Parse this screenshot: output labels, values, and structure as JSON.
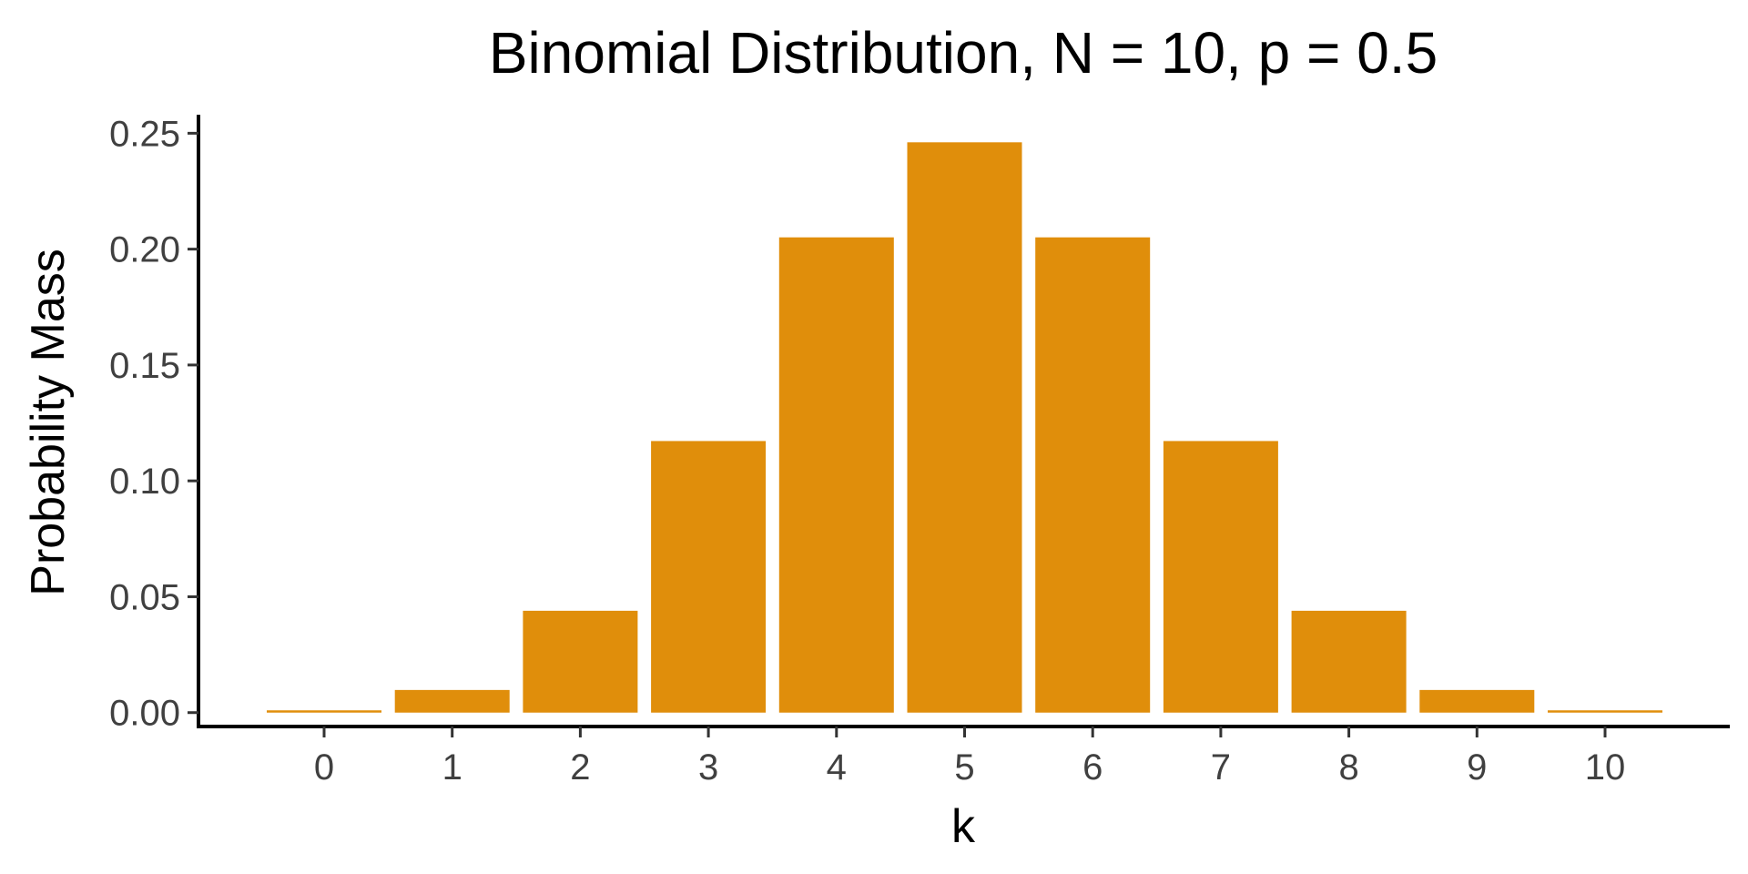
{
  "chart_data": {
    "type": "bar",
    "title": "Binomial Distribution, N = 10, p = 0.5",
    "xlabel": "k",
    "ylabel": "Probability Mass",
    "categories": [
      "0",
      "1",
      "2",
      "3",
      "4",
      "5",
      "6",
      "7",
      "8",
      "9",
      "10"
    ],
    "values": [
      0.000977,
      0.009766,
      0.043945,
      0.117188,
      0.205078,
      0.246094,
      0.205078,
      0.117188,
      0.043945,
      0.009766,
      0.000977
    ],
    "yticks": [
      "0.00",
      "0.05",
      "0.10",
      "0.15",
      "0.20",
      "0.25"
    ],
    "ytick_values": [
      0,
      0.05,
      0.1,
      0.15,
      0.2,
      0.25
    ],
    "ylim": [
      -0.006,
      0.258
    ],
    "grid": false,
    "bar_color": "#E08E0B"
  }
}
